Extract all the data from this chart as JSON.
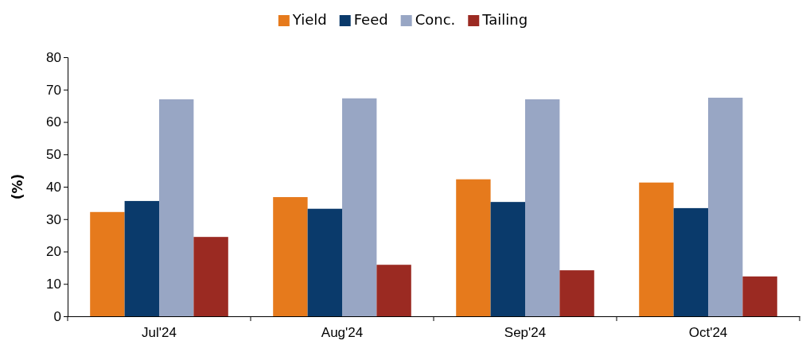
{
  "chart_data": {
    "type": "bar",
    "ylabel": "(%)",
    "categories": [
      "Jul'24",
      "Aug'24",
      "Sep'24",
      "Oct'24"
    ],
    "series": [
      {
        "name": "Yield",
        "color": "#e67a1c",
        "values": [
          32.2,
          36.8,
          42.3,
          41.3
        ]
      },
      {
        "name": "Feed",
        "color": "#0a3a6b",
        "values": [
          35.6,
          33.2,
          35.3,
          33.4
        ]
      },
      {
        "name": "Conc.",
        "color": "#98a6c4",
        "values": [
          67.0,
          67.3,
          67.0,
          67.5
        ]
      },
      {
        "name": "Tailing",
        "color": "#9b2a22",
        "values": [
          24.5,
          15.9,
          14.2,
          12.3
        ]
      }
    ],
    "ylim": [
      0,
      80
    ],
    "yticks": [
      0,
      10,
      20,
      30,
      40,
      50,
      60,
      70,
      80
    ],
    "legend": "top",
    "grid": false
  }
}
